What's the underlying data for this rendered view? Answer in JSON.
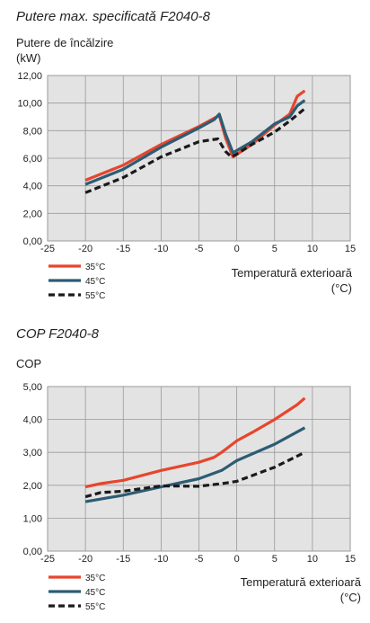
{
  "chart_data": [
    {
      "type": "line",
      "title": "Putere max. specificată F2040-8",
      "ylabel_line1": "Putere de încălzire",
      "ylabel_line2": "(kW)",
      "xlabel_line1": "Temperatură exterioară",
      "xlabel_line2": "(°C)",
      "xlim": [
        -25,
        15
      ],
      "ylim": [
        0,
        12
      ],
      "xticks": [
        "-25",
        "-20",
        "-15",
        "-10",
        "-5",
        "0",
        "5",
        "10",
        "15"
      ],
      "yticks": [
        "0,00",
        "2,00",
        "4,00",
        "6,00",
        "8,00",
        "10,00",
        "12,00"
      ],
      "grid": true,
      "legend_position": "bottom-left",
      "series": [
        {
          "name": "35°C",
          "color": "#e8452c",
          "dash": "solid",
          "x": [
            -20,
            -15,
            -10,
            -5,
            -3,
            -2.3,
            -1.5,
            -0.5,
            2,
            5,
            7,
            8,
            9
          ],
          "y": [
            4.4,
            5.5,
            7.0,
            8.3,
            8.9,
            9.1,
            7.5,
            6.1,
            7.0,
            8.4,
            9.2,
            10.5,
            10.9
          ]
        },
        {
          "name": "45°C",
          "color": "#2d5c74",
          "dash": "solid",
          "x": [
            -20,
            -15,
            -10,
            -5,
            -3,
            -2.3,
            -1.5,
            -0.5,
            2,
            5,
            7,
            8,
            9
          ],
          "y": [
            4.1,
            5.2,
            6.8,
            8.2,
            8.8,
            9.2,
            7.8,
            6.4,
            7.2,
            8.5,
            9.0,
            9.8,
            10.2
          ]
        },
        {
          "name": "55°C",
          "color": "#1a1a1a",
          "dash": "dashed",
          "x": [
            -20,
            -15,
            -10,
            -5,
            -2.5,
            -1.5,
            -0.7,
            0,
            2,
            5,
            7,
            9
          ],
          "y": [
            3.5,
            4.6,
            6.1,
            7.2,
            7.4,
            6.5,
            6.1,
            6.3,
            7.0,
            7.9,
            8.7,
            9.6
          ]
        }
      ]
    },
    {
      "type": "line",
      "title": "COP F2040-8",
      "ylabel_line1": "COP",
      "xlabel_line1": "Temperatură exterioară",
      "xlabel_line2": "(°C)",
      "xlim": [
        -25,
        15
      ],
      "ylim": [
        0,
        5
      ],
      "xticks": [
        "-25",
        "-20",
        "-15",
        "-10",
        "-5",
        "0",
        "5",
        "10",
        "15"
      ],
      "yticks": [
        "0,00",
        "1,00",
        "2,00",
        "3,00",
        "4,00",
        "5,00"
      ],
      "grid": true,
      "legend_position": "bottom-left",
      "series": [
        {
          "name": "35°C",
          "color": "#e8452c",
          "dash": "solid",
          "x": [
            -20,
            -18,
            -15,
            -10,
            -5,
            -3,
            -2,
            0,
            2,
            5,
            8,
            9
          ],
          "y": [
            1.95,
            2.05,
            2.15,
            2.45,
            2.7,
            2.85,
            3.0,
            3.35,
            3.6,
            4.0,
            4.45,
            4.65
          ]
        },
        {
          "name": "45°C",
          "color": "#2d5c74",
          "dash": "solid",
          "x": [
            -20,
            -15,
            -10,
            -5,
            -2,
            0,
            5,
            9
          ],
          "y": [
            1.5,
            1.7,
            1.95,
            2.2,
            2.45,
            2.75,
            3.25,
            3.75
          ]
        },
        {
          "name": "55°C",
          "color": "#1a1a1a",
          "dash": "dashed",
          "x": [
            -20,
            -18,
            -15,
            -10,
            -5,
            -2,
            0,
            5,
            9
          ],
          "y": [
            1.65,
            1.78,
            1.82,
            1.98,
            1.97,
            2.05,
            2.12,
            2.55,
            3.0
          ]
        }
      ]
    }
  ]
}
